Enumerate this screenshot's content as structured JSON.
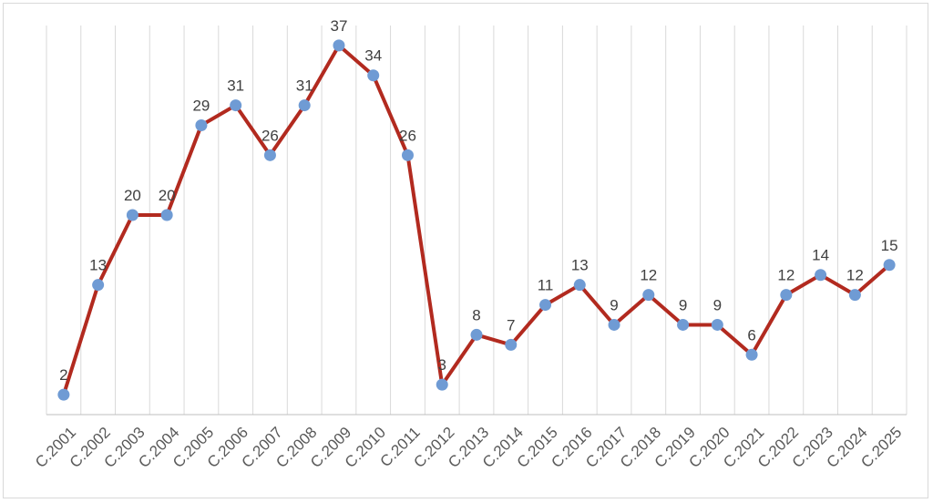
{
  "colors": {
    "line": "#b22a1f",
    "marker": "#6f9bd4",
    "grid": "#d9d9d9"
  },
  "chart_data": {
    "type": "line",
    "categories": [
      "C.2001",
      "C.2002",
      "C.2003",
      "C.2004",
      "C.2005",
      "C.2006",
      "C.2007",
      "C.2008",
      "C.2009",
      "C.2010",
      "C.2011",
      "C.2012",
      "C.2013",
      "C.2014",
      "C.2015",
      "C.2016",
      "C.2017",
      "C.2018",
      "C.2019",
      "C.2020",
      "C.2021",
      "C.2022",
      "C.2023",
      "C.2024",
      "C.2025"
    ],
    "series": [
      {
        "values": [
          2,
          13,
          20,
          20,
          29,
          31,
          26,
          31,
          37,
          34,
          26,
          3,
          8,
          7,
          11,
          13,
          9,
          12,
          9,
          9,
          6,
          12,
          14,
          12,
          15
        ]
      }
    ],
    "data_labels": [
      "2",
      "13",
      "20",
      "20",
      "29",
      "31",
      "26",
      "31",
      "37",
      "34",
      "26",
      "3",
      "8",
      "7",
      "11",
      "13",
      "9",
      "12",
      "9",
      "9",
      "6",
      "12",
      "14",
      "12",
      "15"
    ],
    "title": "",
    "xlabel": "",
    "ylabel": "",
    "ylim": [
      0,
      39
    ],
    "grid": "vertical",
    "legend": "none"
  }
}
